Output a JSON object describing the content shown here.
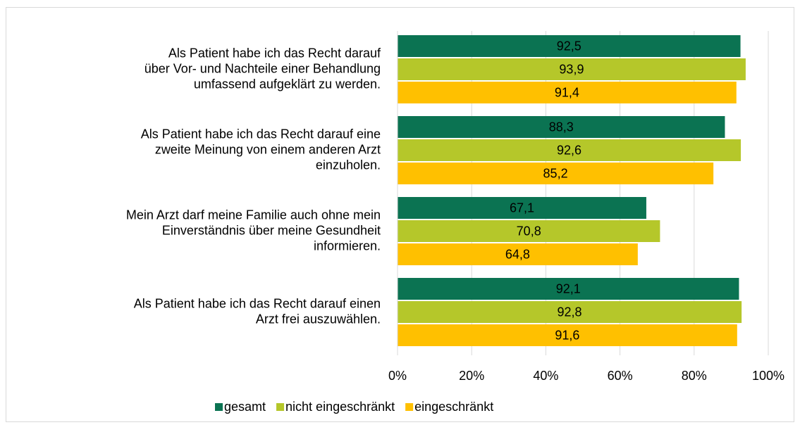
{
  "chart_data": {
    "type": "bar",
    "orientation": "horizontal",
    "categories": [
      "Als Patient habe ich das Recht darauf\nüber Vor- und Nachteile einer Behandlung\numfassend aufgeklärt zu werden.",
      "Als Patient habe ich das Recht darauf eine\nzweite Meinung von einem anderen Arzt\neinzuholen.",
      "Mein Arzt darf meine Familie auch ohne mein\nEinverständnis über meine Gesundheit\ninformieren.",
      "Als Patient habe ich das Recht darauf einen\nArzt frei auszuwählen."
    ],
    "series": [
      {
        "name": "gesamt",
        "color": "#0b7352",
        "values": [
          92.5,
          88.3,
          67.1,
          92.1
        ],
        "value_labels": [
          "92,5",
          "88,3",
          "67,1",
          "92,1"
        ]
      },
      {
        "name": "nicht eingeschränkt",
        "color": "#b5c72a",
        "values": [
          93.9,
          92.6,
          70.8,
          92.8
        ],
        "value_labels": [
          "93,9",
          "92,6",
          "70,8",
          "92,8"
        ]
      },
      {
        "name": "eingeschränkt",
        "color": "#ffc000",
        "values": [
          91.4,
          85.2,
          64.8,
          91.6
        ],
        "value_labels": [
          "91,4",
          "85,2",
          "64,8",
          "91,6"
        ]
      }
    ],
    "xlim": [
      0,
      100
    ],
    "xticks": [
      {
        "value": 0,
        "label": "0%"
      },
      {
        "value": 20,
        "label": "20%"
      },
      {
        "value": 40,
        "label": "40%"
      },
      {
        "value": 60,
        "label": "60%"
      },
      {
        "value": 80,
        "label": "80%"
      },
      {
        "value": 100,
        "label": "100%"
      }
    ],
    "grid": true,
    "legend": "bottom"
  }
}
